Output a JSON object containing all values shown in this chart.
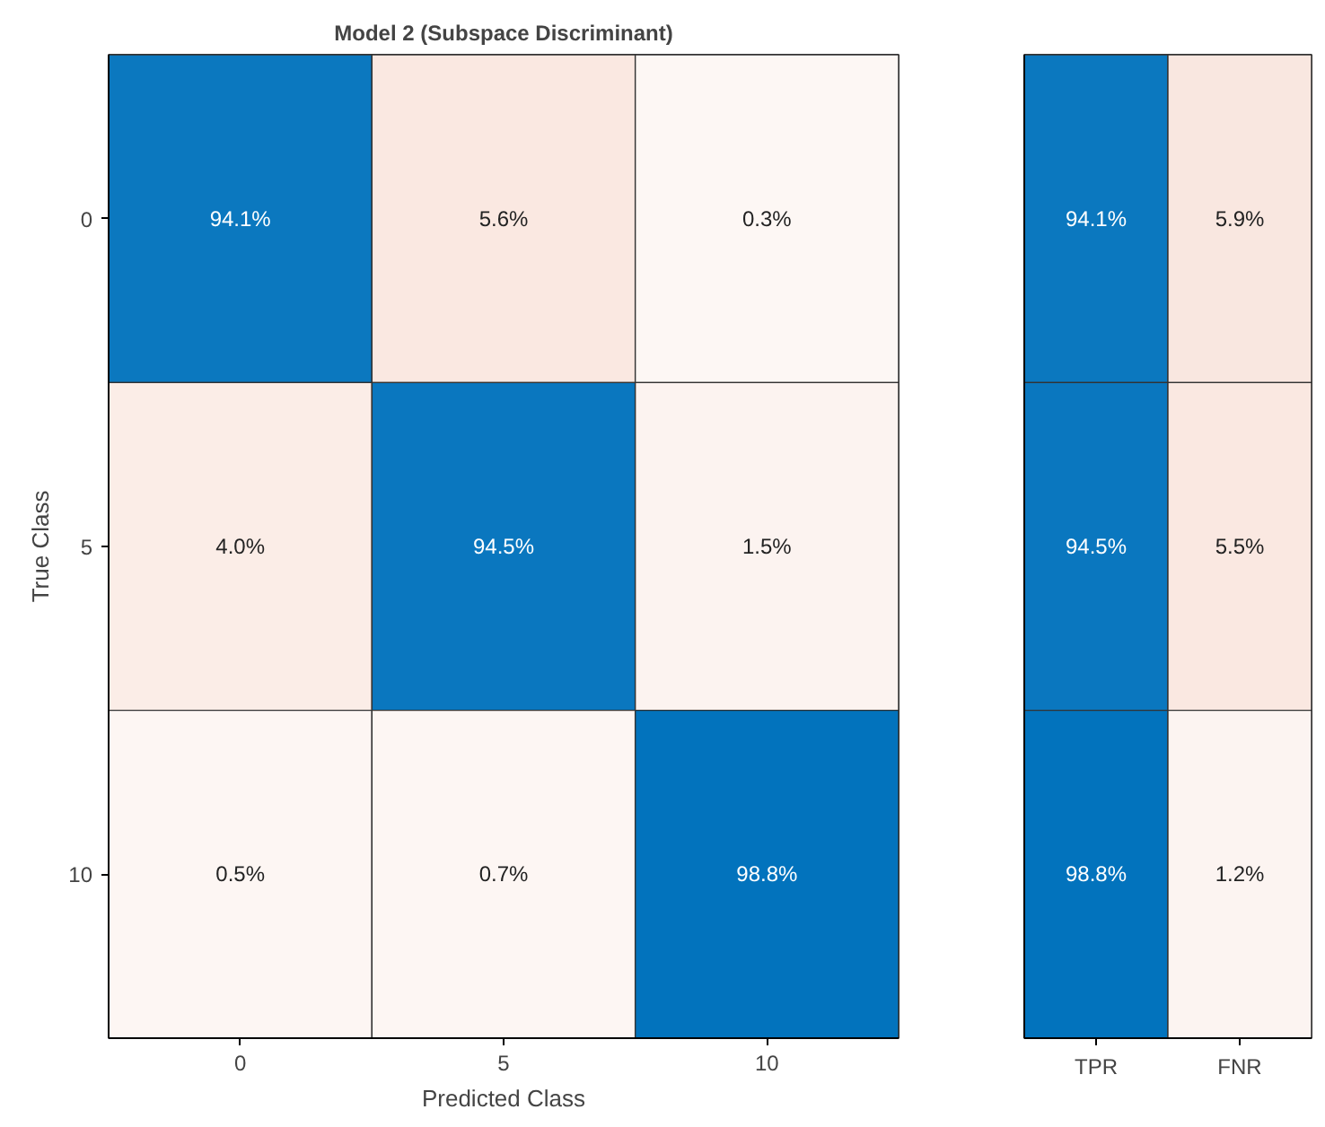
{
  "chart_data": [
    {
      "type": "heatmap",
      "title": "Model 2 (Subspace Discriminant)",
      "xlabel": "Predicted Class",
      "ylabel": "True Class",
      "categories": [
        "0",
        "5",
        "10"
      ],
      "y_categories": [
        "0",
        "5",
        "10"
      ],
      "cells": [
        [
          94.1,
          5.6,
          0.3
        ],
        [
          4.0,
          94.5,
          1.5
        ],
        [
          0.5,
          0.7,
          98.8
        ]
      ],
      "cell_labels": [
        [
          "94.1%",
          "5.6%",
          "0.3%"
        ],
        [
          "4.0%",
          "94.5%",
          "1.5%"
        ],
        [
          "0.5%",
          "0.7%",
          "98.8%"
        ]
      ]
    },
    {
      "type": "heatmap",
      "categories": [
        "TPR",
        "FNR"
      ],
      "y_categories": [
        "0",
        "5",
        "10"
      ],
      "tick_labels": "x",
      "cells": [
        [
          94.1,
          5.9
        ],
        [
          94.5,
          5.5
        ],
        [
          98.8,
          1.2
        ]
      ],
      "cell_labels": [
        [
          "94.1%",
          "5.9%"
        ],
        [
          "94.5%",
          "5.5%"
        ],
        [
          "98.8%",
          "1.2%"
        ]
      ]
    }
  ]
}
